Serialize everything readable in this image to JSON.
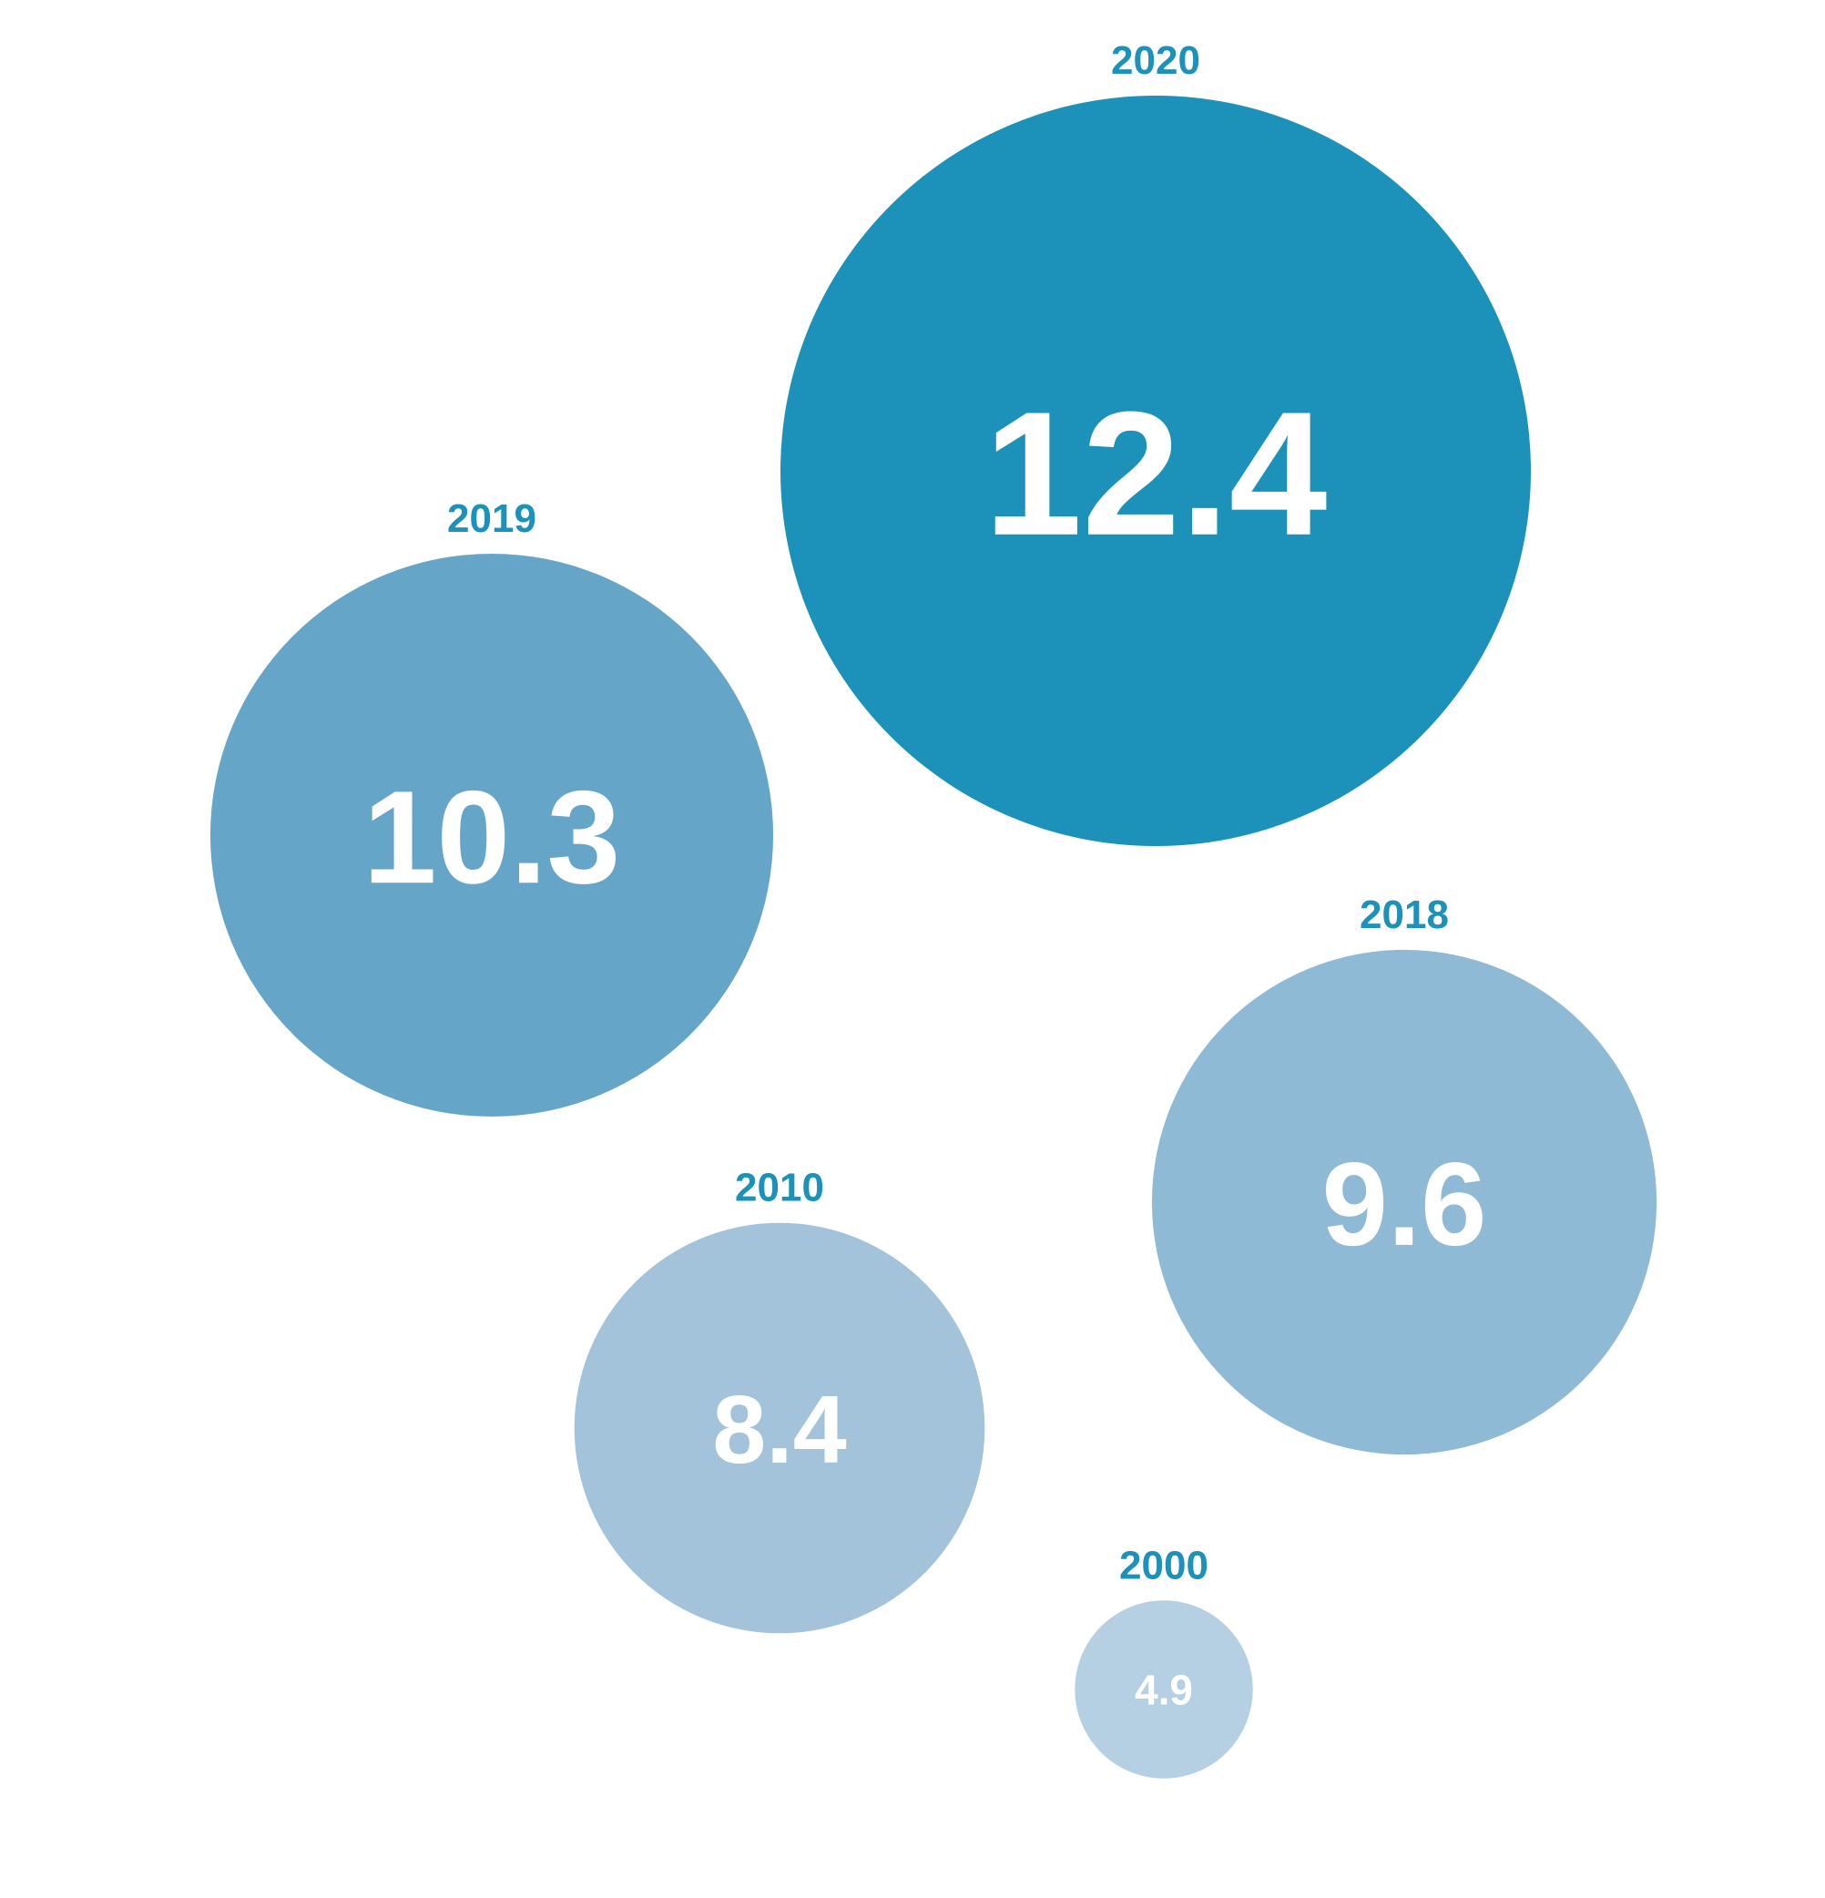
{
  "chart_data": {
    "type": "bubble",
    "title": "",
    "legend": "none",
    "grid": false,
    "points": [
      {
        "year": "2020",
        "value": 12.4,
        "value_label": "12.4",
        "color": "#1c92bb"
      },
      {
        "year": "2019",
        "value": 10.3,
        "value_label": "10.3",
        "color": "#65a5c8"
      },
      {
        "year": "2018",
        "value": 9.6,
        "value_label": "9.6",
        "color": "#8fbad5"
      },
      {
        "year": "2010",
        "value": 8.4,
        "value_label": "8.4",
        "color": "#a3c3da"
      },
      {
        "year": "2000",
        "value": 4.9,
        "value_label": "4.9",
        "color": "#b4d0e2"
      }
    ],
    "year_label_color": "#1c92bb",
    "value_label_color": "#ffffff"
  }
}
